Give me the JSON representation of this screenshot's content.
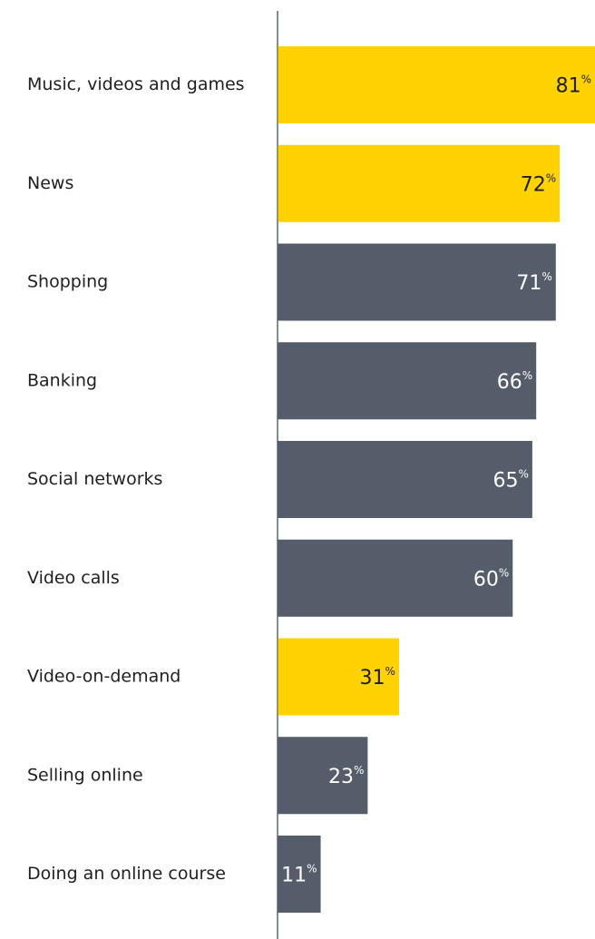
{
  "chart_data": {
    "type": "bar",
    "orientation": "horizontal",
    "categories": [
      "Music, videos and games",
      "News",
      "Shopping",
      "Banking",
      "Social networks",
      "Video calls",
      "Video-on-demand",
      "Selling online",
      "Doing an online course"
    ],
    "values": [
      81,
      72,
      71,
      66,
      65,
      60,
      31,
      23,
      11
    ],
    "value_suffix": "%",
    "highlighted": [
      true,
      true,
      false,
      false,
      false,
      false,
      true,
      false,
      false
    ],
    "xlim": [
      0,
      81
    ],
    "grid": false,
    "legend": "none",
    "title": "",
    "xlabel": "",
    "ylabel": ""
  },
  "colors": {
    "highlight": "#ffd200",
    "default": "#545d69",
    "axis": "#5e6470",
    "label_text": "#1f1f1f",
    "value_on_highlight": "#1f1f1f",
    "value_on_default": "#ffffff"
  }
}
